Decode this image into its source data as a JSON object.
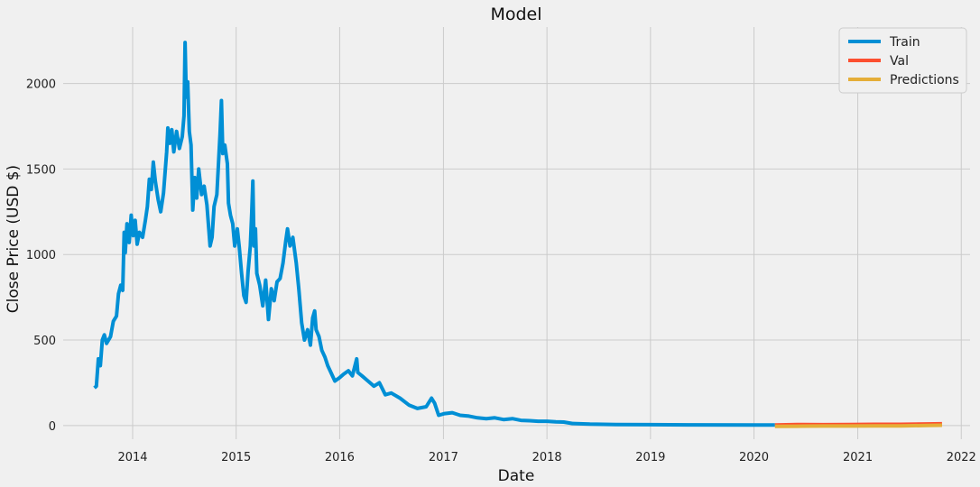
{
  "chart_data": {
    "type": "line",
    "title": "Model",
    "xlabel": "Date",
    "ylabel": "Close Price (USD $)",
    "x_ticks": [
      "2014",
      "2015",
      "2016",
      "2017",
      "2018",
      "2019",
      "2020",
      "2021",
      "2022"
    ],
    "y_ticks": [
      "0",
      "500",
      "1000",
      "1500",
      "2000"
    ],
    "xlim": [
      "2013-05-01",
      "2022-02-01"
    ],
    "ylim": [
      -80,
      2330
    ],
    "grid": true,
    "legend_position": "top-right",
    "series": [
      {
        "name": "Train",
        "color": "#008fd5",
        "points": [
          [
            "2013-08-19",
            220
          ],
          [
            "2013-08-26",
            230
          ],
          [
            "2013-09-02",
            390
          ],
          [
            "2013-09-09",
            350
          ],
          [
            "2013-09-16",
            500
          ],
          [
            "2013-09-23",
            530
          ],
          [
            "2013-10-01",
            480
          ],
          [
            "2013-10-15",
            520
          ],
          [
            "2013-10-25",
            610
          ],
          [
            "2013-11-05",
            640
          ],
          [
            "2013-11-12",
            770
          ],
          [
            "2013-11-20",
            820
          ],
          [
            "2013-11-27",
            790
          ],
          [
            "2013-12-02",
            1130
          ],
          [
            "2013-12-06",
            1010
          ],
          [
            "2013-12-12",
            1180
          ],
          [
            "2013-12-20",
            1070
          ],
          [
            "2013-12-27",
            1230
          ],
          [
            "2014-01-03",
            1110
          ],
          [
            "2014-01-10",
            1200
          ],
          [
            "2014-01-17",
            1060
          ],
          [
            "2014-01-25",
            1130
          ],
          [
            "2014-02-05",
            1100
          ],
          [
            "2014-02-15",
            1200
          ],
          [
            "2014-02-22",
            1280
          ],
          [
            "2014-03-01",
            1440
          ],
          [
            "2014-03-08",
            1380
          ],
          [
            "2014-03-15",
            1540
          ],
          [
            "2014-03-22",
            1430
          ],
          [
            "2014-04-01",
            1320
          ],
          [
            "2014-04-10",
            1250
          ],
          [
            "2014-04-20",
            1360
          ],
          [
            "2014-05-01",
            1600
          ],
          [
            "2014-05-05",
            1740
          ],
          [
            "2014-05-12",
            1650
          ],
          [
            "2014-05-19",
            1730
          ],
          [
            "2014-05-26",
            1600
          ],
          [
            "2014-06-05",
            1720
          ],
          [
            "2014-06-15",
            1620
          ],
          [
            "2014-06-25",
            1690
          ],
          [
            "2014-07-01",
            1810
          ],
          [
            "2014-07-05",
            2240
          ],
          [
            "2014-07-09",
            1920
          ],
          [
            "2014-07-14",
            2010
          ],
          [
            "2014-07-20",
            1720
          ],
          [
            "2014-07-26",
            1640
          ],
          [
            "2014-08-01",
            1260
          ],
          [
            "2014-08-08",
            1450
          ],
          [
            "2014-08-15",
            1330
          ],
          [
            "2014-08-22",
            1500
          ],
          [
            "2014-09-01",
            1350
          ],
          [
            "2014-09-10",
            1400
          ],
          [
            "2014-09-20",
            1290
          ],
          [
            "2014-10-01",
            1050
          ],
          [
            "2014-10-08",
            1100
          ],
          [
            "2014-10-15",
            1280
          ],
          [
            "2014-10-25",
            1350
          ],
          [
            "2014-11-05",
            1700
          ],
          [
            "2014-11-10",
            1900
          ],
          [
            "2014-11-15",
            1590
          ],
          [
            "2014-11-22",
            1640
          ],
          [
            "2014-12-01",
            1530
          ],
          [
            "2014-12-05",
            1300
          ],
          [
            "2014-12-12",
            1230
          ],
          [
            "2014-12-20",
            1180
          ],
          [
            "2014-12-27",
            1050
          ],
          [
            "2015-01-05",
            1150
          ],
          [
            "2015-01-12",
            1040
          ],
          [
            "2015-01-20",
            890
          ],
          [
            "2015-01-28",
            760
          ],
          [
            "2015-02-05",
            720
          ],
          [
            "2015-02-12",
            900
          ],
          [
            "2015-02-20",
            1050
          ],
          [
            "2015-02-25",
            1250
          ],
          [
            "2015-03-01",
            1430
          ],
          [
            "2015-03-05",
            1050
          ],
          [
            "2015-03-10",
            1150
          ],
          [
            "2015-03-15",
            890
          ],
          [
            "2015-03-25",
            820
          ],
          [
            "2015-04-05",
            700
          ],
          [
            "2015-04-15",
            850
          ],
          [
            "2015-04-25",
            620
          ],
          [
            "2015-05-05",
            800
          ],
          [
            "2015-05-15",
            730
          ],
          [
            "2015-05-25",
            840
          ],
          [
            "2015-06-05",
            860
          ],
          [
            "2015-06-15",
            950
          ],
          [
            "2015-06-25",
            1080
          ],
          [
            "2015-07-01",
            1150
          ],
          [
            "2015-07-10",
            1050
          ],
          [
            "2015-07-20",
            1100
          ],
          [
            "2015-08-01",
            950
          ],
          [
            "2015-08-10",
            800
          ],
          [
            "2015-08-20",
            600
          ],
          [
            "2015-08-30",
            500
          ],
          [
            "2015-09-10",
            560
          ],
          [
            "2015-09-20",
            470
          ],
          [
            "2015-09-28",
            630
          ],
          [
            "2015-10-05",
            670
          ],
          [
            "2015-10-10",
            560
          ],
          [
            "2015-10-20",
            520
          ],
          [
            "2015-10-30",
            440
          ],
          [
            "2015-11-10",
            400
          ],
          [
            "2015-11-20",
            350
          ],
          [
            "2015-12-01",
            310
          ],
          [
            "2015-12-15",
            260
          ],
          [
            "2016-01-01",
            280
          ],
          [
            "2016-01-15",
            300
          ],
          [
            "2016-02-01",
            320
          ],
          [
            "2016-02-15",
            290
          ],
          [
            "2016-03-01",
            390
          ],
          [
            "2016-03-05",
            310
          ],
          [
            "2016-03-20",
            290
          ],
          [
            "2016-04-10",
            260
          ],
          [
            "2016-05-01",
            230
          ],
          [
            "2016-05-20",
            250
          ],
          [
            "2016-06-10",
            180
          ],
          [
            "2016-07-01",
            190
          ],
          [
            "2016-08-01",
            160
          ],
          [
            "2016-09-01",
            120
          ],
          [
            "2016-10-01",
            100
          ],
          [
            "2016-11-01",
            110
          ],
          [
            "2016-11-20",
            160
          ],
          [
            "2016-12-01",
            130
          ],
          [
            "2016-12-15",
            60
          ],
          [
            "2017-01-05",
            70
          ],
          [
            "2017-02-01",
            75
          ],
          [
            "2017-03-01",
            60
          ],
          [
            "2017-04-01",
            55
          ],
          [
            "2017-05-01",
            45
          ],
          [
            "2017-06-01",
            40
          ],
          [
            "2017-07-01",
            45
          ],
          [
            "2017-08-01",
            35
          ],
          [
            "2017-09-01",
            40
          ],
          [
            "2017-10-01",
            30
          ],
          [
            "2017-11-01",
            28
          ],
          [
            "2017-12-01",
            25
          ],
          [
            "2018-01-01",
            25
          ],
          [
            "2018-02-01",
            22
          ],
          [
            "2018-03-01",
            20
          ],
          [
            "2018-04-01",
            12
          ],
          [
            "2018-06-01",
            8
          ],
          [
            "2018-09-01",
            6
          ],
          [
            "2019-01-01",
            5
          ],
          [
            "2019-06-01",
            4
          ],
          [
            "2020-01-01",
            3
          ],
          [
            "2020-03-15",
            3
          ]
        ]
      },
      {
        "name": "Val",
        "color": "#fc4f30",
        "points": [
          [
            "2020-03-15",
            3
          ],
          [
            "2020-06-01",
            6
          ],
          [
            "2020-09-01",
            5
          ],
          [
            "2020-12-01",
            6
          ],
          [
            "2021-03-01",
            7
          ],
          [
            "2021-06-01",
            7
          ],
          [
            "2021-09-01",
            9
          ],
          [
            "2021-10-25",
            10
          ]
        ]
      },
      {
        "name": "Predictions",
        "color": "#e5ae38",
        "points": [
          [
            "2020-03-15",
            -5
          ],
          [
            "2020-06-01",
            -4
          ],
          [
            "2020-09-01",
            -3
          ],
          [
            "2020-12-01",
            -3
          ],
          [
            "2021-03-01",
            -2
          ],
          [
            "2021-06-01",
            -2
          ],
          [
            "2021-09-01",
            0
          ],
          [
            "2021-10-25",
            2
          ]
        ]
      }
    ]
  }
}
